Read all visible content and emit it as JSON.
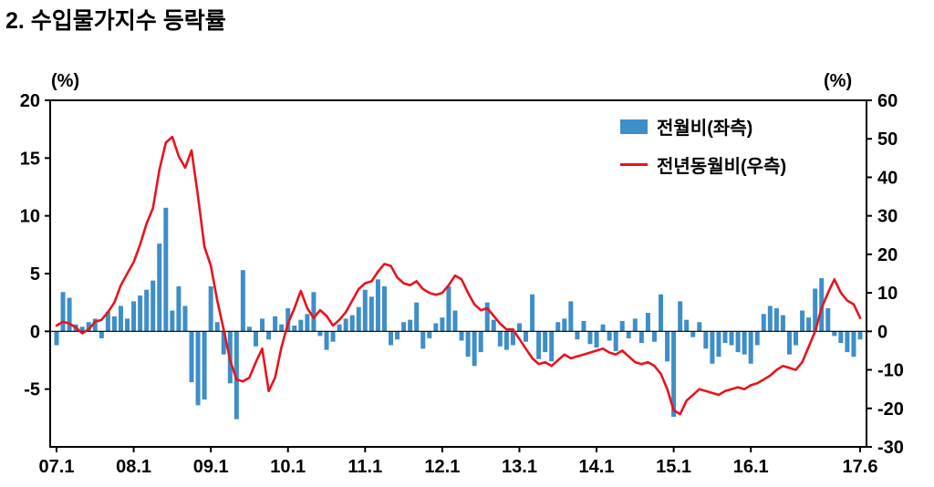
{
  "title": "2. 수입물가지수 등락률",
  "chart_data": {
    "type": "bar+line",
    "title": "수입물가지수 등락률",
    "unit_left": "(%)",
    "unit_right": "(%)",
    "n_points": 126,
    "x_range": [
      "07.1",
      "17.6"
    ],
    "x_ticks": [
      {
        "label": "07.1",
        "index": 0
      },
      {
        "label": "08.1",
        "index": 12
      },
      {
        "label": "09.1",
        "index": 24
      },
      {
        "label": "10.1",
        "index": 36
      },
      {
        "label": "11.1",
        "index": 48
      },
      {
        "label": "12.1",
        "index": 60
      },
      {
        "label": "13.1",
        "index": 72
      },
      {
        "label": "14.1",
        "index": 84
      },
      {
        "label": "15.1",
        "index": 96
      },
      {
        "label": "16.1",
        "index": 108
      },
      {
        "label": "17.6",
        "index": 125
      }
    ],
    "axis_left": {
      "min": -10,
      "max": 20,
      "ticks": [
        20,
        15,
        10,
        5,
        0,
        -5
      ]
    },
    "axis_right": {
      "min": -30,
      "max": 60,
      "ticks": [
        60,
        50,
        40,
        30,
        20,
        10,
        0,
        -10,
        -20,
        -30
      ]
    },
    "legend": [
      {
        "label": "전월비(좌측)",
        "type": "bar",
        "color": "#3e8ec8"
      },
      {
        "label": "전년동월비(우측)",
        "type": "line",
        "color": "#e8131c"
      }
    ],
    "series": [
      {
        "name": "전월비(좌측)",
        "type": "bar",
        "axis": "left",
        "color": "#3e8ec8",
        "values": [
          -1.2,
          3.4,
          2.9,
          0.6,
          0.4,
          0.8,
          1.1,
          -0.6,
          1.7,
          1.3,
          2.2,
          1.1,
          2.6,
          3.1,
          3.6,
          4.4,
          7.6,
          10.7,
          1.8,
          3.9,
          2.2,
          -4.4,
          -6.4,
          -5.9,
          3.9,
          0.8,
          -2.0,
          -4.5,
          -7.6,
          5.3,
          0.4,
          -1.3,
          1.1,
          -0.7,
          1.3,
          0.6,
          2.0,
          0.5,
          1.0,
          1.5,
          3.4,
          -0.4,
          -1.6,
          -0.9,
          0.6,
          1.1,
          1.4,
          2.1,
          3.6,
          3.0,
          4.5,
          3.9,
          -1.2,
          -0.7,
          0.8,
          1.0,
          2.5,
          -1.5,
          -0.6,
          0.7,
          1.2,
          3.9,
          1.8,
          -0.8,
          -2.2,
          -3.0,
          -1.8,
          2.5,
          1.0,
          -1.3,
          -1.6,
          -1.2,
          0.7,
          -0.9,
          3.2,
          -2.4,
          -1.8,
          -2.6,
          0.8,
          1.1,
          2.6,
          -0.7,
          0.9,
          -1.1,
          -1.4,
          0.6,
          -0.8,
          -1.7,
          0.9,
          -0.6,
          1.1,
          -1.0,
          1.6,
          -0.9,
          3.2,
          -2.6,
          -7.4,
          2.6,
          1.0,
          -0.5,
          0.8,
          -1.5,
          -2.8,
          -2.2,
          -1.0,
          -1.2,
          -1.8,
          -2.0,
          -2.8,
          -1.2,
          1.5,
          2.2,
          2.0,
          1.4,
          -2.0,
          -1.2,
          1.8,
          1.2,
          3.7,
          4.6,
          2.0,
          -0.4,
          -1.0,
          -1.8,
          -2.2,
          -0.7
        ]
      },
      {
        "name": "전년동월비(우측)",
        "type": "line",
        "axis": "right",
        "color": "#e8131c",
        "values": [
          1.5,
          2.5,
          2.0,
          1.0,
          -0.5,
          0.5,
          2.5,
          3.0,
          5.0,
          7.5,
          12.0,
          15.0,
          18.0,
          22.5,
          28.0,
          32.0,
          42.0,
          49.0,
          50.5,
          45.5,
          42.5,
          47.0,
          35.0,
          22.0,
          17.0,
          8.0,
          0.5,
          -7.5,
          -12.5,
          -13.0,
          -12.0,
          -8.0,
          -4.5,
          -15.5,
          -12.0,
          -4.0,
          2.0,
          6.0,
          10.5,
          6.0,
          3.5,
          5.5,
          4.0,
          1.5,
          3.0,
          5.0,
          8.0,
          11.0,
          12.5,
          13.0,
          15.5,
          17.5,
          17.0,
          14.0,
          12.5,
          12.0,
          13.0,
          11.0,
          10.0,
          9.5,
          10.0,
          12.0,
          14.5,
          13.5,
          10.0,
          7.0,
          5.5,
          6.0,
          4.0,
          2.0,
          0.5,
          0.5,
          -2.0,
          -4.5,
          -7.0,
          -8.5,
          -8.0,
          -9.0,
          -7.5,
          -6.0,
          -7.0,
          -6.5,
          -6.0,
          -5.5,
          -5.0,
          -4.5,
          -5.5,
          -6.0,
          -5.0,
          -6.5,
          -8.0,
          -8.5,
          -8.0,
          -9.0,
          -11.0,
          -15.0,
          -20.5,
          -21.5,
          -18.0,
          -16.5,
          -15.0,
          -15.5,
          -16.0,
          -16.5,
          -15.5,
          -15.0,
          -14.5,
          -15.0,
          -14.0,
          -13.5,
          -12.5,
          -11.5,
          -10.0,
          -9.0,
          -9.5,
          -10.0,
          -8.0,
          -4.0,
          0.0,
          6.0,
          10.0,
          13.5,
          10.0,
          8.0,
          7.0,
          3.5
        ]
      }
    ]
  }
}
